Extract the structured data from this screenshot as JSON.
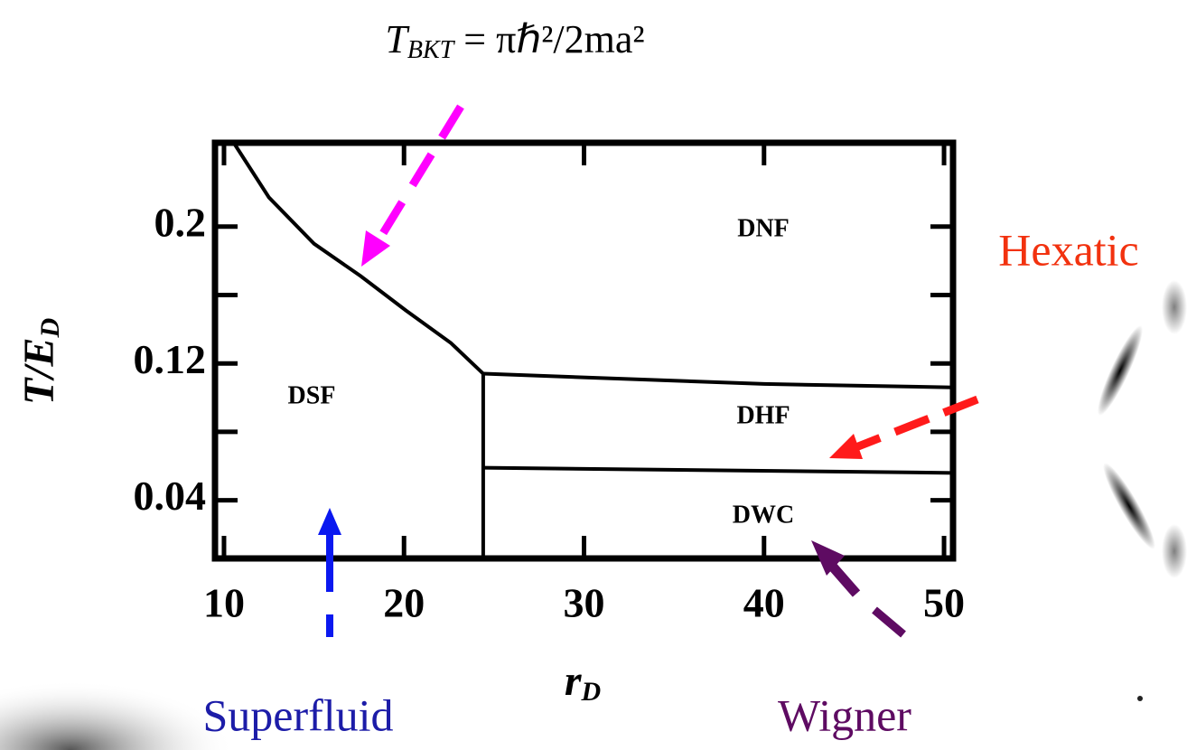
{
  "chart_data": {
    "type": "line",
    "annotations": {
      "formula": {
        "text": "T",
        "sub": "BKT",
        "rest": " = πℏ²/2ma²"
      },
      "regions": [
        "DNF",
        "DSF",
        "DHF",
        "DWC"
      ],
      "phases": [
        "Hexatic",
        "Superfluid",
        "Wigner"
      ]
    },
    "xlabel": {
      "text": "r",
      "sub": "D"
    },
    "ylabel": {
      "text": "T/E",
      "sub": "D"
    },
    "xlim": [
      9.5,
      50.5
    ],
    "xticks": [
      10,
      20,
      30,
      40,
      50
    ],
    "ylim": [
      0.006,
      0.249
    ],
    "yticks": [
      0.04,
      0.12,
      0.2
    ],
    "yminorticks": [
      0.08,
      0.16
    ],
    "series": [
      {
        "color": "#000000",
        "x": [
          10.6,
          12.5,
          15.0,
          17.6,
          20.1,
          22.6,
          24.4
        ],
        "values": [
          0.248,
          0.217,
          0.19,
          0.171,
          0.151,
          0.132,
          0.114
        ]
      },
      {
        "color": "#000000",
        "x": [
          24.4,
          40,
          50.5
        ],
        "values": [
          0.114,
          0.108,
          0.106
        ]
      },
      {
        "color": "#000000",
        "x": [
          24.4,
          50.5
        ],
        "values": [
          0.059,
          0.056
        ]
      },
      {
        "color": "#000000",
        "x": [
          24.4,
          24.4
        ],
        "values": [
          0.114,
          0.006
        ]
      }
    ]
  }
}
